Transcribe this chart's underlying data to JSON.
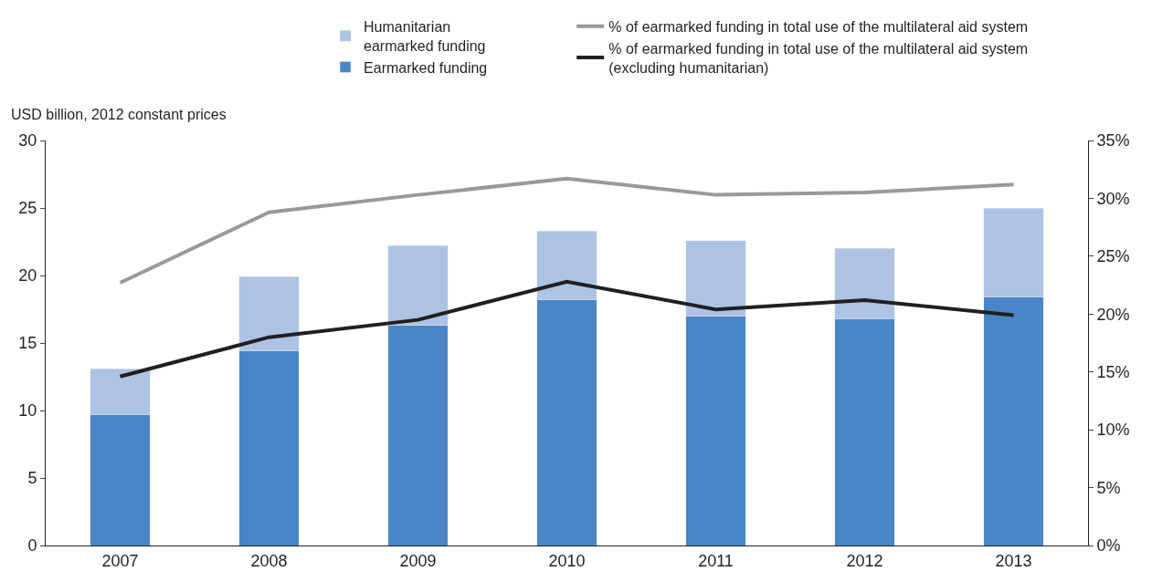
{
  "chart_data": {
    "type": "bar",
    "stacked": true,
    "ylabel": "USD billion, 2012 constant prices",
    "categories": [
      "2007",
      "2008",
      "2009",
      "2010",
      "2011",
      "2012",
      "2013"
    ],
    "series": [
      {
        "name": "Earmarked funding",
        "color": "#4a86c6",
        "values": [
          9.7,
          14.4,
          16.3,
          18.2,
          17.0,
          16.8,
          18.4
        ]
      },
      {
        "name": "Humanitarian\nearmarked funding",
        "color": "#aec3e4",
        "values": [
          3.4,
          5.5,
          5.9,
          5.1,
          5.6,
          5.2,
          6.6
        ]
      },
      {
        "name": "% of earmarked funding in total use of the multilateral aid system",
        "type": "line",
        "axis": "y2",
        "color": "#999999",
        "values": [
          22.7,
          28.8,
          30.3,
          31.7,
          30.3,
          30.5,
          31.2
        ]
      },
      {
        "name": "% of earmarked funding in total use of the multilateral aid system\n(excluding humanitarian)",
        "type": "line",
        "axis": "y2",
        "color": "#231f20",
        "values": [
          14.6,
          18.0,
          19.5,
          22.8,
          20.4,
          21.2,
          19.9
        ]
      }
    ],
    "ylim": [
      0,
      30
    ],
    "yticks": [
      0,
      5,
      10,
      15,
      20,
      25,
      30
    ],
    "y2lim": [
      0,
      35
    ],
    "y2ticks": [
      {
        "value": 0,
        "label": "0%"
      },
      {
        "value": 5,
        "label": "5%"
      },
      {
        "value": 10,
        "label": "10%"
      },
      {
        "value": 15,
        "label": "15%"
      },
      {
        "value": 20,
        "label": "20%"
      },
      {
        "value": 25,
        "label": "25%"
      },
      {
        "value": 30,
        "label": "30%"
      },
      {
        "value": 35,
        "label": "35%"
      }
    ],
    "legend": "top",
    "marker": "none",
    "line_style": "solid"
  }
}
